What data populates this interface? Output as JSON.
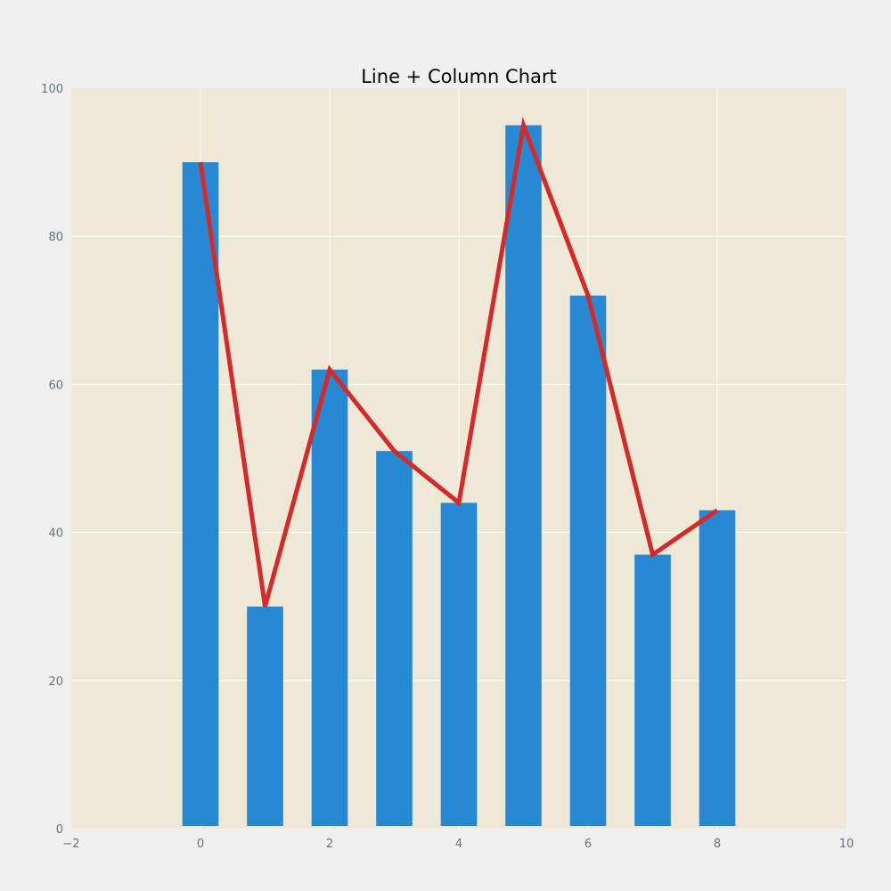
{
  "chart_data": {
    "type": "bar",
    "title": "Line + Column Chart",
    "xlabel": "",
    "ylabel": "",
    "xlim": [
      -2,
      10
    ],
    "ylim": [
      0,
      100
    ],
    "x_ticks": [
      -2,
      0,
      2,
      4,
      6,
      8,
      10
    ],
    "x_tick_labels": [
      "−2",
      "0",
      "2",
      "4",
      "6",
      "8",
      "10"
    ],
    "y_ticks": [
      0,
      20,
      40,
      60,
      80,
      100
    ],
    "y_tick_labels": [
      "0",
      "20",
      "40",
      "60",
      "80",
      "100"
    ],
    "grid": true,
    "x": [
      0,
      1,
      2,
      3,
      4,
      5,
      6,
      7,
      8
    ],
    "series": [
      {
        "type": "bar",
        "values": [
          90,
          30,
          62,
          51,
          44,
          95,
          72,
          37,
          43
        ]
      },
      {
        "type": "line",
        "values": [
          90,
          30,
          62,
          51,
          44,
          95,
          72,
          37,
          43
        ]
      }
    ],
    "colors": {
      "figure_bg": "#f0f0f0",
      "plot_bg": "#eee8d6",
      "bar": "#2789d3",
      "line": "#d62a2a",
      "grid": "#ffffff",
      "tick": "#5f7580",
      "title": "#000000"
    }
  }
}
